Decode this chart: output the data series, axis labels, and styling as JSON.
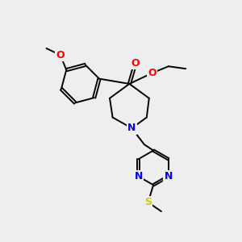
{
  "bg_color": "#eeeeee",
  "atom_colors": {
    "N": "#0000ff",
    "O": "#ff0000",
    "S": "#cccc00"
  },
  "bond_lw": 1.4,
  "figsize": [
    3.0,
    3.0
  ],
  "dpi": 100
}
